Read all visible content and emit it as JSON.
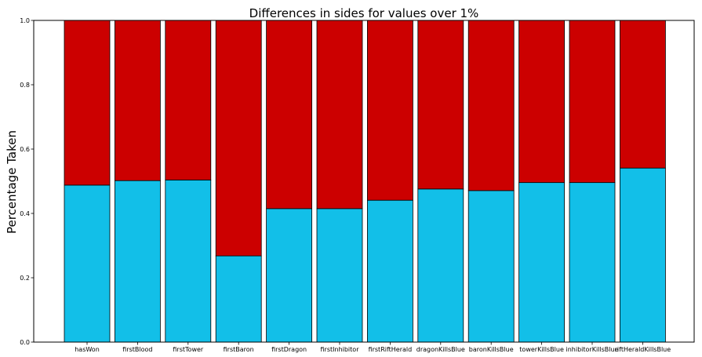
{
  "chart_data": {
    "type": "bar",
    "stacked": true,
    "normalized": true,
    "title": "Differences in sides for values over 1%",
    "xlabel": "",
    "ylabel": "Percentage Taken",
    "ylim": [
      0,
      1.0
    ],
    "yticks": [
      "0.0",
      "0.2",
      "0.4",
      "0.6",
      "0.8",
      "1.0"
    ],
    "categories": [
      "hasWon",
      "firstBlood",
      "firstTower",
      "firstBaron",
      "firstDragon",
      "firstInhibitor",
      "firstRiftHerald",
      "dragonKillsBlue",
      "baronKillsBlue",
      "towerKillsBlue",
      "inhibitorKillsBlue",
      "riftHeraldKillsBlue"
    ],
    "series": [
      {
        "color": "#12bfe8",
        "values": [
          0.488,
          0.502,
          0.504,
          0.268,
          0.415,
          0.415,
          0.441,
          0.476,
          0.471,
          0.496,
          0.496,
          0.541
        ]
      },
      {
        "color": "#cc0000",
        "values": [
          0.512,
          0.498,
          0.496,
          0.732,
          0.585,
          0.585,
          0.559,
          0.524,
          0.529,
          0.504,
          0.504,
          0.459
        ]
      }
    ],
    "grid": false,
    "legend": "none"
  }
}
